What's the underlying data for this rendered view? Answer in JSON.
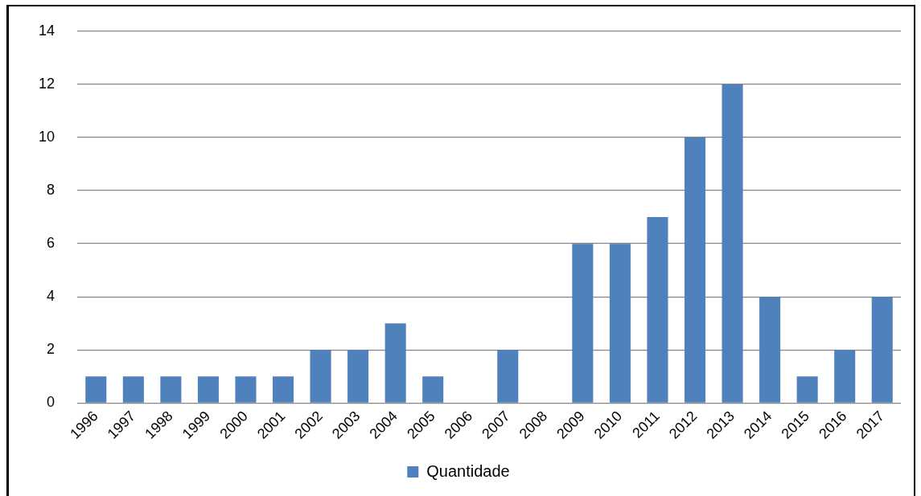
{
  "chart_data": {
    "type": "bar",
    "categories": [
      "1996",
      "1997",
      "1998",
      "1999",
      "2000",
      "2001",
      "2002",
      "2003",
      "2004",
      "2005",
      "2006",
      "2007",
      "2008",
      "2009",
      "2010",
      "2011",
      "2012",
      "2013",
      "2014",
      "2015",
      "2016",
      "2017"
    ],
    "series": [
      {
        "name": "Quantidade",
        "color": "#4f81bd",
        "values": [
          1,
          1,
          1,
          1,
          1,
          1,
          2,
          2,
          3,
          1,
          0,
          2,
          0,
          6,
          6,
          7,
          10,
          12,
          4,
          1,
          2,
          4
        ]
      }
    ],
    "ylim": [
      0,
      14
    ],
    "yticks": [
      0,
      2,
      4,
      6,
      8,
      10,
      12,
      14
    ],
    "grid": "y",
    "legend": "bottom"
  }
}
